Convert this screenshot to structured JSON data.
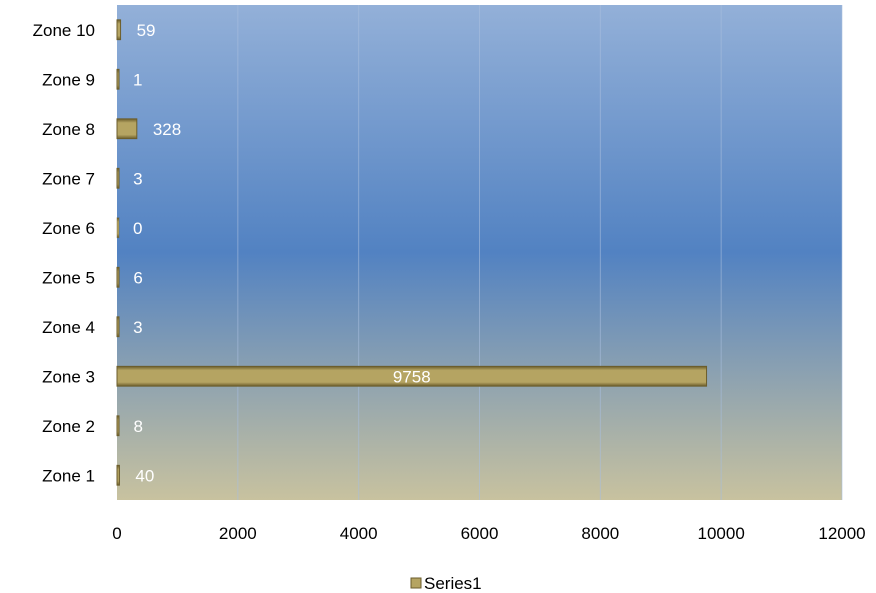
{
  "chart_data": {
    "type": "bar",
    "orientation": "horizontal",
    "categories": [
      "Zone 1",
      "Zone 2",
      "Zone 3",
      "Zone 4",
      "Zone 5",
      "Zone 6",
      "Zone 7",
      "Zone 8",
      "Zone 9",
      "Zone 10"
    ],
    "series": [
      {
        "name": "Series1",
        "values": [
          40,
          8,
          9758,
          3,
          6,
          0,
          3,
          328,
          1,
          59
        ]
      }
    ],
    "data_labels": [
      "40",
      "8",
      "9758",
      "3",
      "6",
      "0",
      "3",
      "328",
      "1",
      "59"
    ],
    "x_ticks": [
      "0",
      "2000",
      "4000",
      "6000",
      "8000",
      "10000",
      "12000"
    ],
    "xlim": [
      0,
      12000
    ],
    "grid": true,
    "legend": {
      "position": "bottom",
      "entries": [
        "Series1"
      ]
    },
    "colors": {
      "bar": "#b5a462",
      "bar_dark": "#6b5d2c",
      "plot_bg_top": "#93b0d8",
      "plot_bg_mid": "#5282c2",
      "plot_bg_bottom": "#c8c29f",
      "gridline": "#a9bedd"
    }
  }
}
